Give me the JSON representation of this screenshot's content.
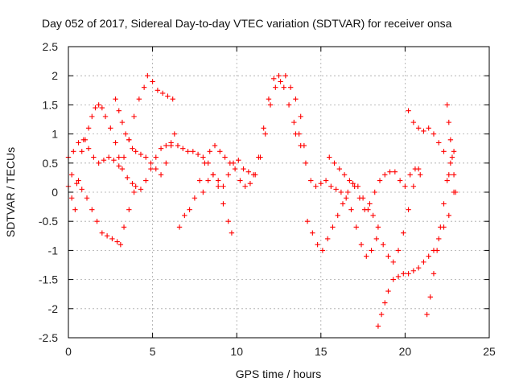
{
  "chart_data": {
    "type": "scatter",
    "title": "Day 052 of 2017, Sidereal Day-to-day VTEC variation (SDTVAR) for receiver onsa",
    "xlabel": "GPS time / hours",
    "ylabel": "SDTVAR / TECUs",
    "xlim": [
      0,
      25
    ],
    "ylim": [
      -2.5,
      2.5
    ],
    "xticks": [
      0,
      5,
      10,
      15,
      20,
      25
    ],
    "yticks": [
      2.5,
      2,
      1.5,
      1,
      0.5,
      0,
      -0.5,
      -1,
      -1.5,
      -2,
      -2.5
    ],
    "ytick_labels": [
      "2.5",
      "2",
      "1.5",
      "1",
      "0.5",
      "0",
      "-0.5",
      "-1",
      "-1.5",
      "-2",
      "-2.5"
    ],
    "grid": true,
    "marker": "+",
    "color": "#ff0000",
    "series": [
      {
        "x": [
          0.0,
          0.3,
          0.6,
          0.9,
          1.2,
          1.5,
          1.8,
          2.1,
          2.4,
          2.7,
          3.0,
          3.3,
          3.6,
          3.9,
          4.2,
          4.5,
          4.7,
          5.0,
          5.3,
          5.6,
          5.9,
          6.2
        ],
        "y": [
          0.6,
          0.7,
          0.85,
          0.9,
          0.75,
          0.6,
          0.5,
          0.55,
          0.6,
          0.55,
          0.45,
          0.6,
          0.9,
          1.3,
          1.6,
          1.8,
          2.0,
          1.9,
          1.75,
          1.7,
          1.65,
          1.6
        ]
      },
      {
        "x": [
          0.0,
          0.2,
          0.4,
          0.6,
          0.8,
          1.0,
          1.2,
          1.4,
          1.6,
          1.8,
          2.0,
          2.2,
          2.5,
          2.8,
          3.0,
          3.2,
          3.5,
          3.8,
          4.0,
          4.3,
          4.6,
          4.9,
          5.2,
          5.5,
          5.8,
          6.1
        ],
        "y": [
          0.1,
          -0.1,
          -0.3,
          0.2,
          0.7,
          0.9,
          1.1,
          1.3,
          1.45,
          1.5,
          1.45,
          1.3,
          1.1,
          0.85,
          0.6,
          0.4,
          0.25,
          0.15,
          0.1,
          0.05,
          0.2,
          0.4,
          0.6,
          0.75,
          0.8,
          0.85
        ]
      },
      {
        "x": [
          0.2,
          0.5,
          0.8,
          1.1,
          1.4,
          1.7,
          2.0,
          2.3,
          2.6,
          2.9,
          3.1,
          3.3,
          3.6,
          3.9
        ],
        "y": [
          0.3,
          0.15,
          0.05,
          -0.1,
          -0.3,
          -0.5,
          -0.7,
          -0.75,
          -0.8,
          -0.85,
          -0.9,
          -0.6,
          -0.3,
          0.0
        ]
      },
      {
        "x": [
          2.8,
          3.0,
          3.2,
          3.4,
          3.6,
          3.8,
          4.0,
          4.3,
          4.6,
          4.9,
          5.2,
          5.5,
          5.8,
          6.1,
          6.3
        ],
        "y": [
          1.6,
          1.4,
          1.2,
          1.0,
          0.9,
          0.75,
          0.7,
          0.65,
          0.6,
          0.5,
          0.4,
          0.3,
          0.5,
          0.8,
          1.0
        ]
      },
      {
        "x": [
          6.5,
          6.8,
          7.1,
          7.4,
          7.7,
          8.0,
          8.3,
          8.6,
          8.9,
          9.2,
          9.5,
          9.7
        ],
        "y": [
          0.8,
          0.75,
          0.7,
          0.7,
          0.65,
          0.6,
          0.5,
          0.3,
          0.1,
          -0.2,
          -0.5,
          -0.7
        ]
      },
      {
        "x": [
          6.6,
          6.9,
          7.2,
          7.5,
          7.8,
          8.1,
          8.4,
          8.7,
          9.0,
          9.3,
          9.6,
          9.9,
          10.2,
          10.5,
          10.8,
          11.1,
          11.4,
          11.7,
          12.0,
          12.3,
          12.6,
          12.9,
          13.2,
          13.5,
          13.8
        ],
        "y": [
          -0.6,
          -0.4,
          -0.3,
          -0.1,
          0.2,
          0.5,
          0.7,
          0.8,
          0.7,
          0.6,
          0.5,
          0.4,
          0.2,
          0.1,
          0.15,
          0.3,
          0.6,
          1.0,
          1.5,
          1.8,
          1.9,
          2.0,
          1.8,
          1.6,
          1.3
        ]
      },
      {
        "x": [
          8.0,
          8.3,
          8.6,
          8.9,
          9.2,
          9.5,
          9.8,
          10.1,
          10.4,
          10.7,
          11.0,
          11.3,
          11.6,
          11.9,
          12.2,
          12.5,
          12.8,
          13.1,
          13.4,
          13.7,
          14.0
        ],
        "y": [
          0.0,
          0.2,
          0.3,
          0.2,
          0.1,
          0.3,
          0.5,
          0.55,
          0.4,
          0.35,
          0.3,
          0.6,
          1.1,
          1.6,
          1.95,
          2.0,
          1.8,
          1.5,
          1.2,
          1.0,
          0.8
        ]
      },
      {
        "x": [
          13.5,
          13.8,
          14.1,
          14.4,
          14.7,
          15.0,
          15.3,
          15.6,
          15.9,
          16.2,
          16.5,
          16.8,
          17.1,
          17.4,
          17.7,
          18.0,
          18.3
        ],
        "y": [
          1.0,
          0.8,
          0.5,
          0.2,
          0.1,
          0.15,
          0.2,
          0.1,
          0.05,
          0.0,
          -0.1,
          -0.3,
          -0.6,
          -0.9,
          -1.1,
          -1.0,
          -0.8
        ]
      },
      {
        "x": [
          14.2,
          14.5,
          14.8,
          15.1,
          15.4,
          15.7,
          16.0,
          16.3,
          16.6,
          16.9,
          17.2,
          17.5,
          17.8,
          18.1,
          18.4,
          18.7,
          19.0,
          19.3,
          19.6,
          19.9,
          20.2,
          20.5,
          20.8
        ],
        "y": [
          -0.5,
          -0.7,
          -0.9,
          -1.0,
          -0.8,
          -0.6,
          -0.4,
          -0.2,
          0.0,
          0.15,
          0.1,
          -0.1,
          -0.3,
          -0.4,
          -0.6,
          -0.9,
          -1.1,
          -1.2,
          -1.0,
          -0.7,
          -0.3,
          0.1,
          0.4
        ]
      },
      {
        "x": [
          15.5,
          15.8,
          16.1,
          16.4,
          16.7,
          17.0,
          17.3,
          17.6,
          17.9,
          18.2,
          18.5,
          18.8,
          19.1,
          19.4,
          19.7,
          20.0,
          20.3,
          20.6,
          20.9
        ],
        "y": [
          0.6,
          0.5,
          0.4,
          0.3,
          0.2,
          0.1,
          -0.1,
          -0.3,
          -0.2,
          0.0,
          0.2,
          0.3,
          0.35,
          0.35,
          0.2,
          0.1,
          0.3,
          0.4,
          0.3
        ]
      },
      {
        "x": [
          18.4,
          18.6,
          18.8,
          19.0,
          19.3,
          19.6,
          19.9,
          20.2,
          20.5,
          20.8,
          21.1,
          21.4,
          21.7,
          22.0,
          22.3,
          22.6
        ],
        "y": [
          -2.3,
          -2.1,
          -1.9,
          -1.7,
          -1.5,
          -1.45,
          -1.4,
          -1.4,
          -1.35,
          -1.3,
          -1.2,
          -1.1,
          -1.0,
          -0.8,
          -0.6,
          -0.4
        ]
      },
      {
        "x": [
          20.2,
          20.5,
          20.8,
          21.1,
          21.4,
          21.7,
          22.0,
          22.3,
          22.6,
          22.9
        ],
        "y": [
          1.4,
          1.2,
          1.1,
          1.05,
          1.1,
          1.0,
          0.85,
          0.7,
          0.3,
          0.0
        ]
      },
      {
        "x": [
          21.3,
          21.5,
          21.7,
          21.9,
          22.1,
          22.3,
          22.5,
          22.7,
          22.9
        ],
        "y": [
          -2.1,
          -1.8,
          -1.4,
          -1.0,
          -0.6,
          -0.2,
          0.2,
          0.5,
          0.7
        ]
      },
      {
        "x": [
          22.5,
          22.6,
          22.7,
          22.8,
          22.9,
          23.0
        ],
        "y": [
          1.5,
          1.2,
          0.9,
          0.6,
          0.3,
          0.0
        ]
      }
    ]
  }
}
